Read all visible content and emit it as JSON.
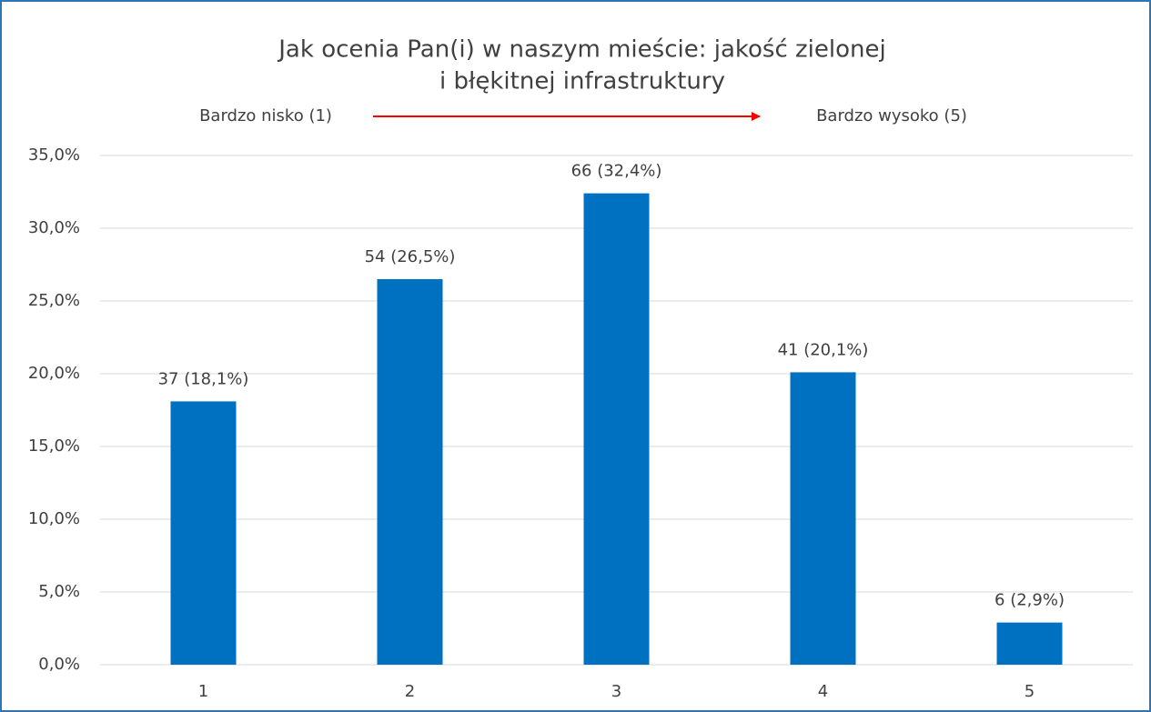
{
  "chart_data": {
    "type": "bar",
    "title": [
      "Jak ocenia Pan(i) w naszym mieście: jakość zielonej",
      "i błękitnej infrastruktury"
    ],
    "annotations": [
      "Bardzo nisko (1)",
      "Bardzo wysoko (5)"
    ],
    "categories": [
      "1",
      "2",
      "3",
      "4",
      "5"
    ],
    "values": [
      18.1,
      26.5,
      32.4,
      20.1,
      2.9
    ],
    "value_labels": [
      "37 (18,1%)",
      "54 (26,5%)",
      "66 (32,4%)",
      "41 (20,1%)",
      "6 (2,9%)"
    ],
    "color": "#0070c0",
    "ylim": [
      0,
      35
    ],
    "yticks": [
      {
        "value": 0,
        "label": "0,0%"
      },
      {
        "value": 5,
        "label": "5,0%"
      },
      {
        "value": 10,
        "label": "10,0%"
      },
      {
        "value": 15,
        "label": "15,0%"
      },
      {
        "value": 20,
        "label": "20,0%"
      },
      {
        "value": 25,
        "label": "25,0%"
      },
      {
        "value": 30,
        "label": "30,0%"
      },
      {
        "value": 35,
        "label": "35,0%"
      }
    ],
    "grid": true
  }
}
